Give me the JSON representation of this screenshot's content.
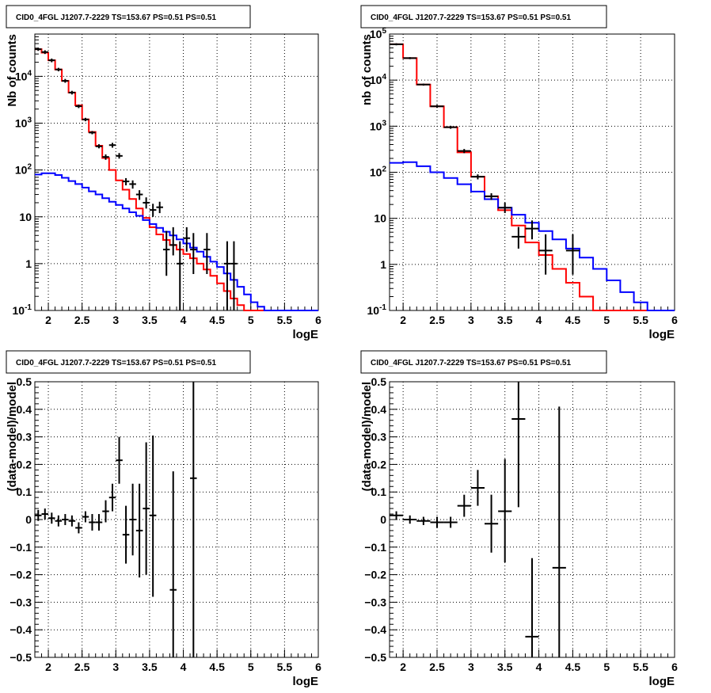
{
  "chart_data": [
    {
      "type": "line",
      "title": "CID0_4FGL J1207.7-2229 TS=153.67 PS=0.51 PS=0.51",
      "xlabel": "logE",
      "ylabel": "Nb of counts",
      "xlim": [
        1.8,
        6
      ],
      "ylim": [
        0.1,
        80000
      ],
      "yscale": "log",
      "grid": true,
      "x_ticks": [
        "2",
        "2.5",
        "3",
        "3.5",
        "4",
        "4.5",
        "5",
        "5.5",
        "6"
      ],
      "y_ticks": [
        "10^-1",
        "1",
        "10",
        "10^2",
        "10^3",
        "10^4"
      ],
      "series": [
        {
          "color": "#ff0000",
          "style": "step",
          "bin_edges": [
            1.8,
            1.9,
            2.0,
            2.1,
            2.2,
            2.3,
            2.4,
            2.5,
            2.6,
            2.7,
            2.8,
            2.9,
            3.0,
            3.1,
            3.2,
            3.3,
            3.4,
            3.5,
            3.6,
            3.7,
            3.8,
            3.9,
            4.0,
            4.1,
            4.2,
            4.3,
            4.4,
            4.5,
            4.6,
            4.7,
            4.8,
            4.9,
            5.0,
            5.1,
            5.2,
            5.3,
            5.4,
            5.5,
            5.6,
            5.7,
            5.8,
            5.9,
            6.0
          ],
          "values": [
            38000,
            32000,
            22000,
            14000,
            8000,
            4500,
            2400,
            1200,
            650,
            330,
            180,
            100,
            60,
            38,
            24,
            15,
            9.5,
            6,
            4.2,
            3.2,
            2.5,
            2.0,
            1.6,
            1.3,
            1.0,
            0.75,
            0.55,
            0.38,
            0.26,
            0.18,
            0.13,
            0.1,
            0.1,
            0.1,
            0.1,
            0.1,
            0.1,
            0.1,
            0.1,
            0.1,
            0.1,
            0.1
          ]
        },
        {
          "color": "#0000ff",
          "style": "step",
          "bin_edges": [
            1.8,
            1.9,
            2.0,
            2.1,
            2.2,
            2.3,
            2.4,
            2.5,
            2.6,
            2.7,
            2.8,
            2.9,
            3.0,
            3.1,
            3.2,
            3.3,
            3.4,
            3.5,
            3.6,
            3.7,
            3.8,
            3.9,
            4.0,
            4.1,
            4.2,
            4.3,
            4.4,
            4.5,
            4.6,
            4.7,
            4.8,
            4.9,
            5.0,
            5.1,
            5.2,
            5.3,
            5.4,
            5.5,
            5.6,
            5.7,
            5.8,
            5.9,
            6.0
          ],
          "values": [
            80,
            85,
            85,
            78,
            68,
            58,
            50,
            42,
            35,
            30,
            25,
            21,
            18,
            15,
            12.5,
            10.5,
            8.5,
            7,
            5.8,
            4.8,
            4,
            3.3,
            2.7,
            2.2,
            1.8,
            1.4,
            1.1,
            0.85,
            0.62,
            0.45,
            0.32,
            0.22,
            0.15,
            0.12,
            0.1,
            0.1,
            0.1,
            0.1,
            0.1,
            0.1,
            0.1,
            0.1
          ]
        },
        {
          "color": "#000000",
          "style": "errorbar",
          "points": [
            {
              "x": 1.85,
              "y": 38000,
              "ylo": 35000,
              "yhi": 41000,
              "xw": 0.05
            },
            {
              "x": 1.95,
              "y": 33000,
              "ylo": 30000,
              "yhi": 36000,
              "xw": 0.05
            },
            {
              "x": 2.05,
              "y": 22000,
              "ylo": 20000,
              "yhi": 24000,
              "xw": 0.05
            },
            {
              "x": 2.15,
              "y": 14000,
              "ylo": 12800,
              "yhi": 15200,
              "xw": 0.05
            },
            {
              "x": 2.25,
              "y": 8000,
              "ylo": 7300,
              "yhi": 8800,
              "xw": 0.05
            },
            {
              "x": 2.35,
              "y": 4500,
              "ylo": 4100,
              "yhi": 4900,
              "xw": 0.05
            },
            {
              "x": 2.45,
              "y": 2300,
              "ylo": 2100,
              "yhi": 2500,
              "xw": 0.05
            },
            {
              "x": 2.55,
              "y": 1200,
              "ylo": 1100,
              "yhi": 1300,
              "xw": 0.05
            },
            {
              "x": 2.65,
              "y": 630,
              "ylo": 580,
              "yhi": 680,
              "xw": 0.05
            },
            {
              "x": 2.75,
              "y": 320,
              "ylo": 290,
              "yhi": 355,
              "xw": 0.05
            },
            {
              "x": 2.85,
              "y": 190,
              "ylo": 165,
              "yhi": 215,
              "xw": 0.05
            },
            {
              "x": 2.95,
              "y": 340,
              "ylo": 300,
              "yhi": 380,
              "xw": 0.05
            },
            {
              "x": 3.05,
              "y": 200,
              "ylo": 175,
              "yhi": 230,
              "xw": 0.05
            },
            {
              "x": 3.15,
              "y": 57,
              "ylo": 47,
              "yhi": 67,
              "xw": 0.05
            },
            {
              "x": 3.25,
              "y": 50,
              "ylo": 40,
              "yhi": 60,
              "xw": 0.05
            },
            {
              "x": 3.35,
              "y": 30,
              "ylo": 23,
              "yhi": 37,
              "xw": 0.05
            },
            {
              "x": 3.45,
              "y": 20,
              "ylo": 15,
              "yhi": 26,
              "xw": 0.05
            },
            {
              "x": 3.55,
              "y": 14,
              "ylo": 10,
              "yhi": 19,
              "xw": 0.05
            },
            {
              "x": 3.65,
              "y": 16,
              "ylo": 12,
              "yhi": 21,
              "xw": 0.05
            },
            {
              "x": 3.75,
              "y": 2,
              "ylo": 0.55,
              "yhi": 5,
              "xw": 0.05
            },
            {
              "x": 3.85,
              "y": 2.5,
              "ylo": 1.5,
              "yhi": 6,
              "xw": 0.05
            },
            {
              "x": 3.95,
              "y": 1,
              "ylo": 0.1,
              "yhi": 3,
              "xw": 0.05
            },
            {
              "x": 4.05,
              "y": 3.5,
              "ylo": 1.8,
              "yhi": 6,
              "xw": 0.05
            },
            {
              "x": 4.15,
              "y": 2,
              "ylo": 0.6,
              "yhi": 4.5,
              "xw": 0.05
            },
            {
              "x": 4.35,
              "y": 2,
              "ylo": 0.6,
              "yhi": 4.5,
              "xw": 0.05
            },
            {
              "x": 4.65,
              "y": 1,
              "ylo": 0.1,
              "yhi": 3,
              "xw": 0.05
            },
            {
              "x": 4.75,
              "y": 1,
              "ylo": 0.1,
              "yhi": 3,
              "xw": 0.05
            }
          ]
        }
      ]
    },
    {
      "type": "line",
      "title": "CID0_4FGL J1207.7-2229 TS=153.67 PS=0.51 PS=0.51",
      "xlabel": "logE",
      "ylabel": "nb of counts",
      "xlim": [
        1.8,
        6
      ],
      "ylim": [
        0.1,
        100000
      ],
      "yscale": "log",
      "grid": true,
      "x_ticks": [
        "2",
        "2.5",
        "3",
        "3.5",
        "4",
        "4.5",
        "5",
        "5.5",
        "6"
      ],
      "y_ticks": [
        "10^-1",
        "1",
        "10",
        "10^2",
        "10^3",
        "10^4",
        "10^5"
      ],
      "series": [
        {
          "color": "#ff0000",
          "style": "step",
          "bin_edges": [
            1.8,
            2.0,
            2.2,
            2.4,
            2.6,
            2.8,
            3.0,
            3.2,
            3.4,
            3.6,
            3.8,
            4.0,
            4.2,
            4.4,
            4.6,
            4.8,
            5.0,
            5.2,
            5.4,
            5.6,
            5.8,
            6.0
          ],
          "values": [
            60000,
            30000,
            8000,
            2700,
            950,
            270,
            80,
            30,
            15,
            7,
            3,
            1.6,
            0.8,
            0.4,
            0.2,
            0.1,
            0.1,
            0.1,
            0.1,
            0.1,
            0.1
          ]
        },
        {
          "color": "#0000ff",
          "style": "step",
          "bin_edges": [
            1.8,
            2.0,
            2.2,
            2.4,
            2.6,
            2.8,
            3.0,
            3.2,
            3.4,
            3.6,
            3.8,
            4.0,
            4.2,
            4.4,
            4.6,
            4.8,
            5.0,
            5.2,
            5.4,
            5.6,
            5.8,
            6.0
          ],
          "values": [
            160,
            165,
            135,
            100,
            75,
            55,
            38,
            26,
            17,
            12,
            8,
            5.3,
            3.5,
            2.2,
            1.4,
            0.8,
            0.45,
            0.25,
            0.15,
            0.1,
            0.1
          ]
        },
        {
          "color": "#000000",
          "style": "errorbar",
          "points": [
            {
              "x": 1.9,
              "y": 60000,
              "ylo": 57000,
              "yhi": 63000,
              "xw": 0.1
            },
            {
              "x": 2.1,
              "y": 30000,
              "ylo": 28500,
              "yhi": 31500,
              "xw": 0.1
            },
            {
              "x": 2.3,
              "y": 8000,
              "ylo": 7600,
              "yhi": 8400,
              "xw": 0.1
            },
            {
              "x": 2.5,
              "y": 2700,
              "ylo": 2500,
              "yhi": 2900,
              "xw": 0.1
            },
            {
              "x": 2.7,
              "y": 950,
              "ylo": 880,
              "yhi": 1020,
              "xw": 0.1
            },
            {
              "x": 2.9,
              "y": 290,
              "ylo": 260,
              "yhi": 320,
              "xw": 0.1
            },
            {
              "x": 3.1,
              "y": 80,
              "ylo": 70,
              "yhi": 90,
              "xw": 0.1
            },
            {
              "x": 3.3,
              "y": 30,
              "ylo": 25,
              "yhi": 35,
              "xw": 0.1
            },
            {
              "x": 3.5,
              "y": 17,
              "ylo": 13,
              "yhi": 22,
              "xw": 0.1
            },
            {
              "x": 3.7,
              "y": 4,
              "ylo": 2.2,
              "yhi": 6.5,
              "xw": 0.1
            },
            {
              "x": 3.9,
              "y": 6,
              "ylo": 3.5,
              "yhi": 9,
              "xw": 0.1
            },
            {
              "x": 4.1,
              "y": 2,
              "ylo": 0.6,
              "yhi": 4.5,
              "xw": 0.1
            },
            {
              "x": 4.5,
              "y": 2,
              "ylo": 0.6,
              "yhi": 4.5,
              "xw": 0.1
            }
          ]
        }
      ]
    },
    {
      "type": "scatter",
      "title": "CID0_4FGL J1207.7-2229 TS=153.67 PS=0.51 PS=0.51",
      "xlabel": "logE",
      "ylabel": "(data-model)/model",
      "xlim": [
        1.8,
        6
      ],
      "ylim": [
        -0.5,
        0.5
      ],
      "grid": true,
      "x_ticks": [
        "2",
        "2.5",
        "3",
        "3.5",
        "4",
        "4.5",
        "5",
        "5.5",
        "6"
      ],
      "y_ticks": [
        "−0.5",
        "−0.4",
        "−0.3",
        "−0.2",
        "−0.1",
        "0",
        "0.1",
        "0.2",
        "0.3",
        "0.4",
        "0.5"
      ],
      "series": [
        {
          "color": "#000000",
          "style": "errorbar",
          "points": [
            {
              "x": 1.85,
              "y": 0.015,
              "ylo": -0.005,
              "yhi": 0.035,
              "xw": 0.05
            },
            {
              "x": 1.95,
              "y": 0.02,
              "ylo": 0.0,
              "yhi": 0.04,
              "xw": 0.05
            },
            {
              "x": 2.05,
              "y": 0.005,
              "ylo": -0.015,
              "yhi": 0.025,
              "xw": 0.05
            },
            {
              "x": 2.15,
              "y": -0.005,
              "ylo": -0.025,
              "yhi": 0.015,
              "xw": 0.05
            },
            {
              "x": 2.25,
              "y": 0.0,
              "ylo": -0.02,
              "yhi": 0.02,
              "xw": 0.05
            },
            {
              "x": 2.35,
              "y": -0.005,
              "ylo": -0.025,
              "yhi": 0.015,
              "xw": 0.05
            },
            {
              "x": 2.45,
              "y": -0.03,
              "ylo": -0.05,
              "yhi": -0.01,
              "xw": 0.05
            },
            {
              "x": 2.55,
              "y": 0.01,
              "ylo": -0.01,
              "yhi": 0.03,
              "xw": 0.05
            },
            {
              "x": 2.65,
              "y": -0.01,
              "ylo": -0.04,
              "yhi": 0.02,
              "xw": 0.05
            },
            {
              "x": 2.75,
              "y": -0.01,
              "ylo": -0.04,
              "yhi": 0.02,
              "xw": 0.05
            },
            {
              "x": 2.85,
              "y": 0.03,
              "ylo": -0.01,
              "yhi": 0.07,
              "xw": 0.05
            },
            {
              "x": 2.95,
              "y": 0.08,
              "ylo": 0.03,
              "yhi": 0.13,
              "xw": 0.05
            },
            {
              "x": 3.05,
              "y": 0.215,
              "ylo": 0.13,
              "yhi": 0.3,
              "xw": 0.05
            },
            {
              "x": 3.15,
              "y": -0.055,
              "ylo": -0.16,
              "yhi": 0.05,
              "xw": 0.05
            },
            {
              "x": 3.25,
              "y": 0.0,
              "ylo": -0.13,
              "yhi": 0.13,
              "xw": 0.05
            },
            {
              "x": 3.35,
              "y": -0.04,
              "ylo": -0.21,
              "yhi": 0.13,
              "xw": 0.05
            },
            {
              "x": 3.45,
              "y": 0.04,
              "ylo": -0.2,
              "yhi": 0.28,
              "xw": 0.05
            },
            {
              "x": 3.55,
              "y": 0.015,
              "ylo": -0.28,
              "yhi": 0.305,
              "xw": 0.05
            },
            {
              "x": 3.85,
              "y": -0.255,
              "ylo": -0.5,
              "yhi": 0.175,
              "xw": 0.05
            },
            {
              "x": 4.15,
              "y": 0.15,
              "ylo": -0.5,
              "yhi": 0.5,
              "xw": 0.05
            }
          ]
        }
      ]
    },
    {
      "type": "scatter",
      "title": "CID0_4FGL J1207.7-2229 TS=153.67 PS=0.51 PS=0.51",
      "xlabel": "logE",
      "ylabel": "(data-model)/model",
      "xlim": [
        1.8,
        6
      ],
      "ylim": [
        -0.5,
        0.5
      ],
      "grid": true,
      "x_ticks": [
        "2",
        "2.5",
        "3",
        "3.5",
        "4",
        "4.5",
        "5",
        "5.5",
        "6"
      ],
      "y_ticks": [
        "−0.5",
        "−0.4",
        "−0.3",
        "−0.2",
        "−0.1",
        "0",
        "0.1",
        "0.2",
        "0.3",
        "0.4",
        "0.5"
      ],
      "series": [
        {
          "color": "#000000",
          "style": "errorbar",
          "points": [
            {
              "x": 1.9,
              "y": 0.015,
              "ylo": 0.0,
              "yhi": 0.03,
              "xw": 0.1
            },
            {
              "x": 2.1,
              "y": 0.0,
              "ylo": -0.015,
              "yhi": 0.015,
              "xw": 0.1
            },
            {
              "x": 2.3,
              "y": -0.005,
              "ylo": -0.02,
              "yhi": 0.01,
              "xw": 0.1
            },
            {
              "x": 2.5,
              "y": -0.01,
              "ylo": -0.03,
              "yhi": 0.01,
              "xw": 0.1
            },
            {
              "x": 2.7,
              "y": -0.01,
              "ylo": -0.03,
              "yhi": 0.01,
              "xw": 0.1
            },
            {
              "x": 2.9,
              "y": 0.05,
              "ylo": 0.01,
              "yhi": 0.09,
              "xw": 0.1
            },
            {
              "x": 3.1,
              "y": 0.115,
              "ylo": 0.05,
              "yhi": 0.18,
              "xw": 0.1
            },
            {
              "x": 3.3,
              "y": -0.015,
              "ylo": -0.12,
              "yhi": 0.09,
              "xw": 0.1
            },
            {
              "x": 3.5,
              "y": 0.03,
              "ylo": -0.155,
              "yhi": 0.22,
              "xw": 0.1
            },
            {
              "x": 3.7,
              "y": 0.365,
              "ylo": 0.045,
              "yhi": 0.5,
              "xw": 0.1
            },
            {
              "x": 3.9,
              "y": -0.425,
              "ylo": -0.5,
              "yhi": -0.14,
              "xw": 0.1
            },
            {
              "x": 4.3,
              "y": -0.175,
              "ylo": -0.5,
              "yhi": 0.41,
              "xw": 0.1
            }
          ]
        }
      ]
    }
  ]
}
